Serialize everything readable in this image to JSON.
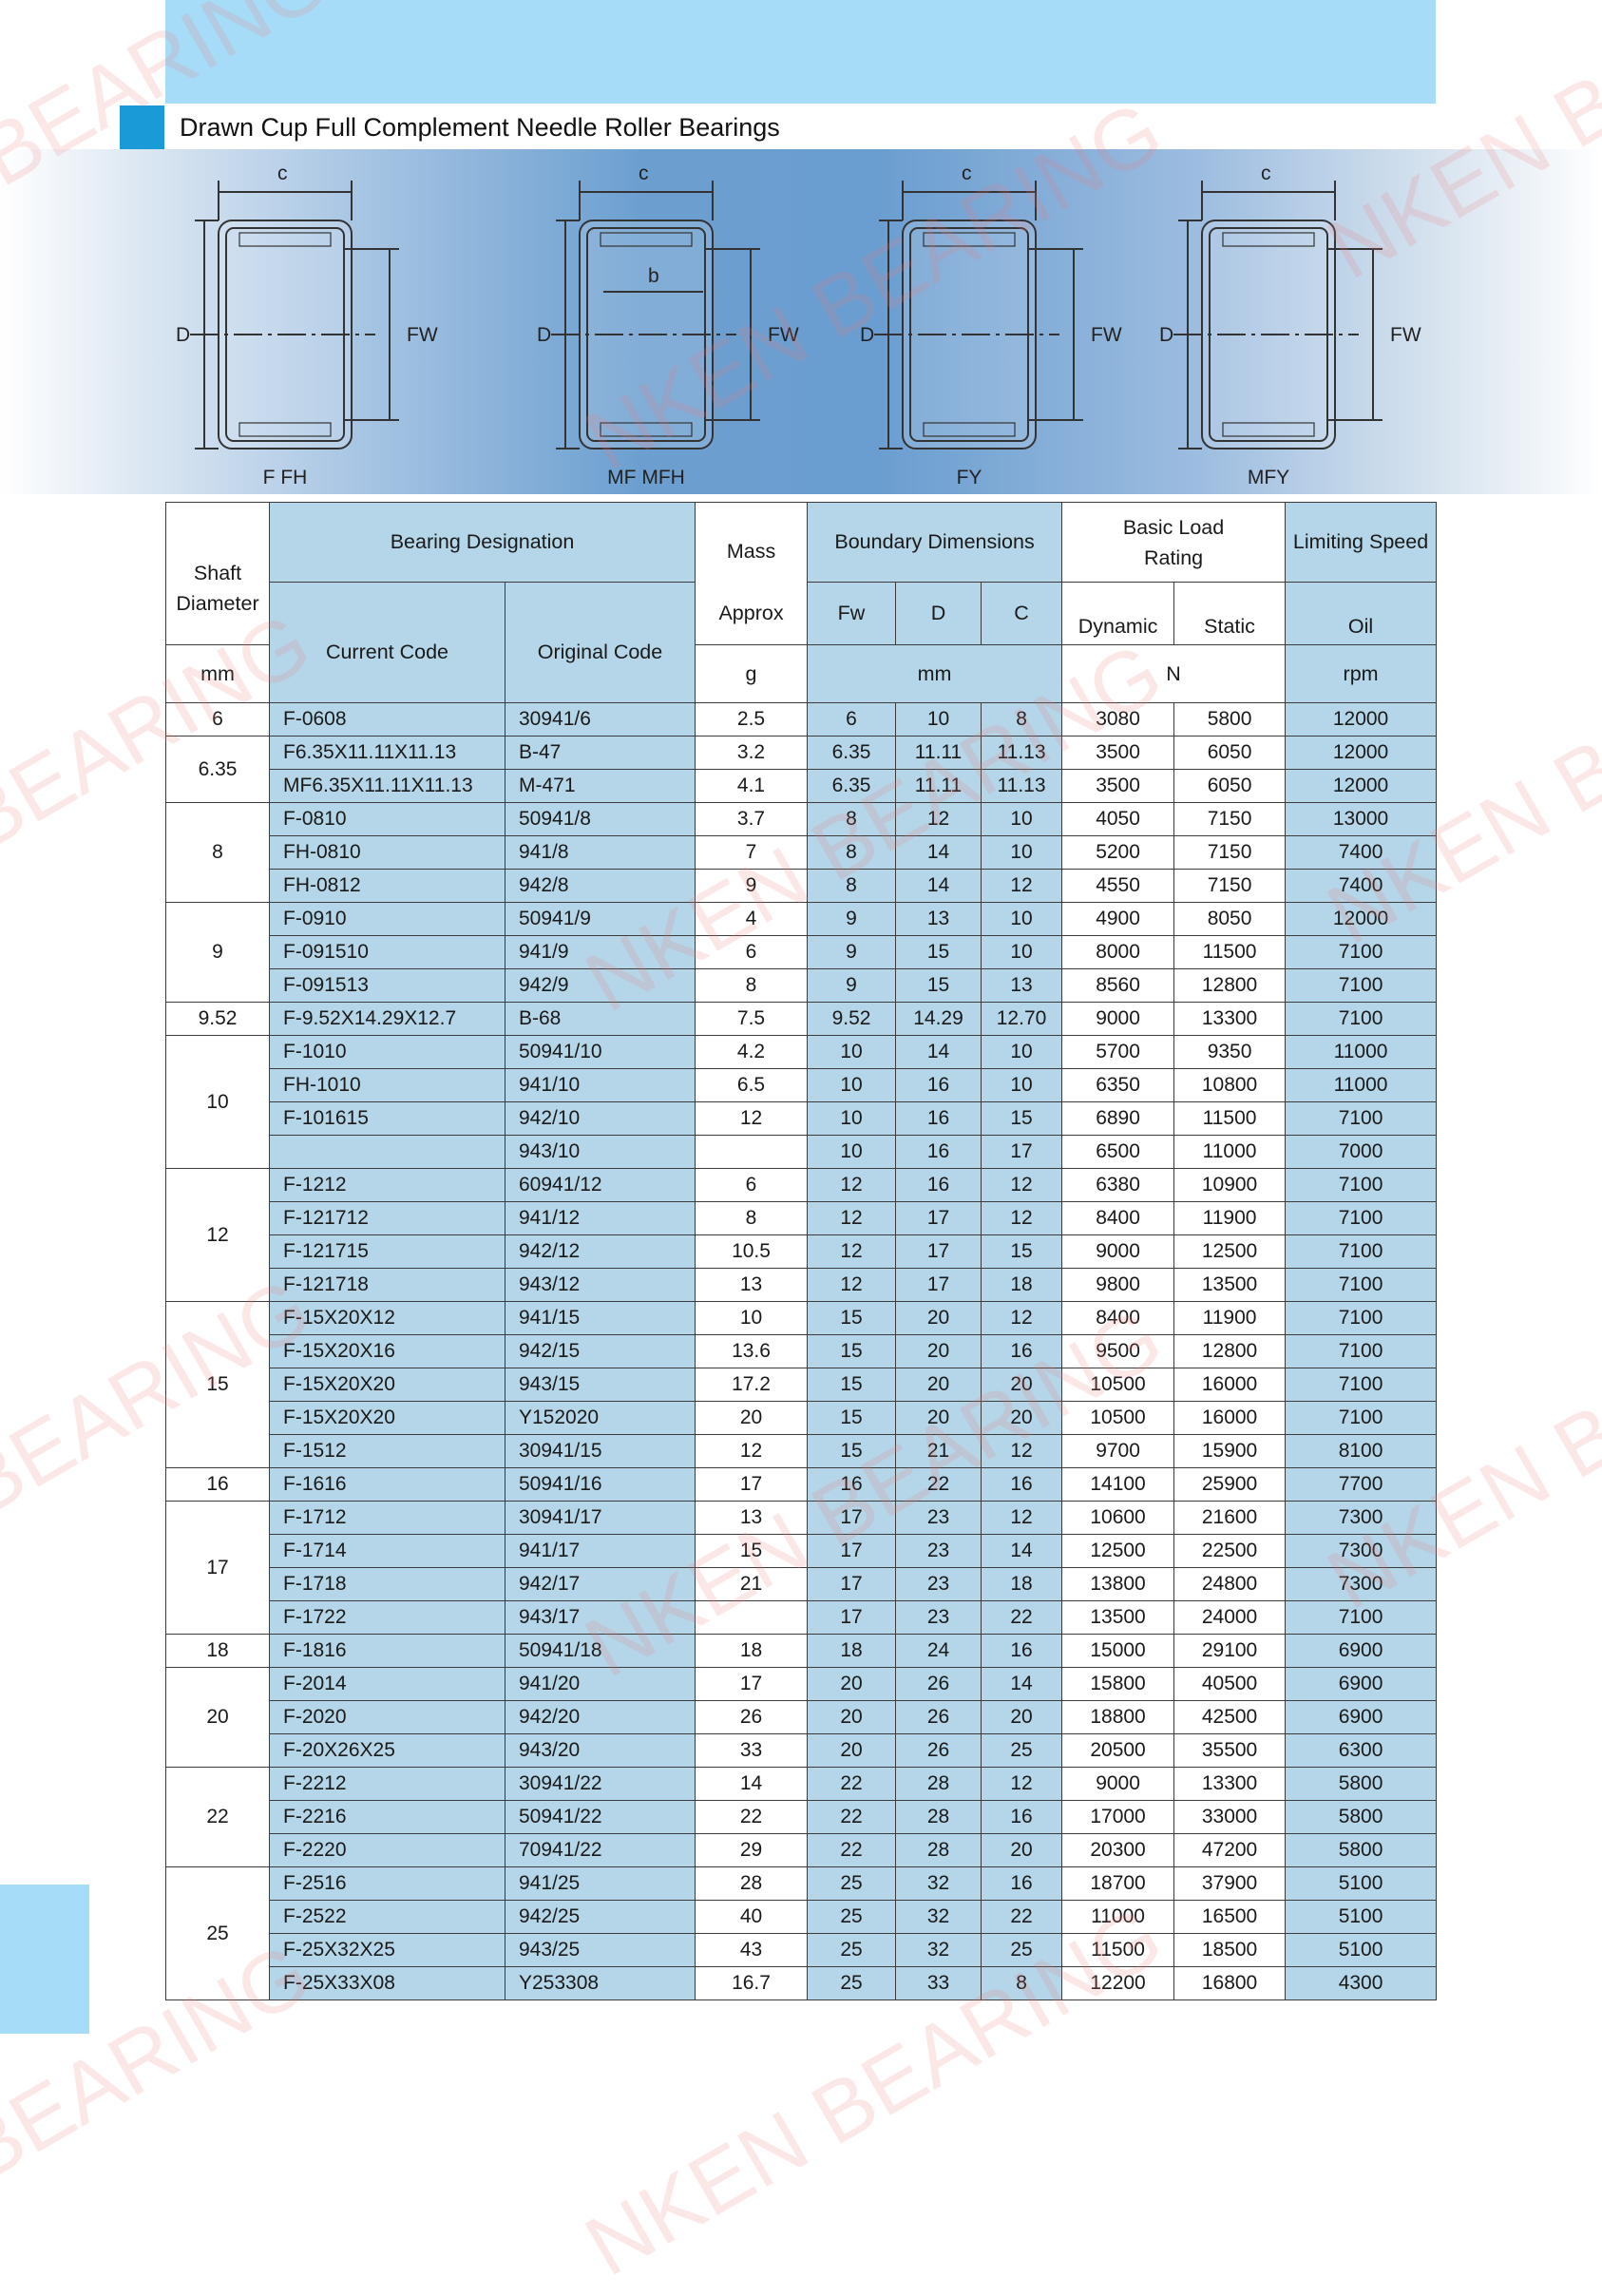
{
  "title": "Drawn Cup Full Complement Needle Roller Bearings",
  "colors": {
    "accent": "#1a9ad6",
    "band": "#a6dcf7",
    "cell_blue": "#b4d6e8"
  },
  "watermark": "NKEN BEARING",
  "diagrams": [
    {
      "caption": "F FH",
      "c": "c",
      "d": "D",
      "fw": "FW"
    },
    {
      "caption": "MF MFH",
      "c": "c",
      "b": "b",
      "d": "D",
      "fw": "FW"
    },
    {
      "caption": "FY",
      "c": "c",
      "d": "D",
      "fw": "FW"
    },
    {
      "caption": "MFY",
      "c": "c",
      "d": "D",
      "fw": "FW"
    }
  ],
  "headers": {
    "shaft": "Shaft Diameter",
    "shaft_unit": "mm",
    "designation": "Bearing Designation",
    "current": "Current Code",
    "original": "Original Code",
    "mass": "Mass",
    "mass_sub": "Approx",
    "mass_unit": "g",
    "boundary": "Boundary Dimensions",
    "fw": "Fw",
    "d": "D",
    "c": "C",
    "boundary_unit": "mm",
    "load": "Basic Load Rating",
    "dynamic": "Dynamic",
    "static": "Static",
    "load_unit": "N",
    "speed": "Limiting Speed",
    "oil": "Oil",
    "speed_unit": "rpm"
  },
  "groups": [
    {
      "shaft": "6",
      "rows": [
        [
          "F-0608",
          "30941/6",
          "2.5",
          "6",
          "10",
          "8",
          "3080",
          "5800",
          "12000"
        ]
      ]
    },
    {
      "shaft": "6.35",
      "rows": [
        [
          "F6.35X11.11X11.13",
          "B-47",
          "3.2",
          "6.35",
          "11.11",
          "11.13",
          "3500",
          "6050",
          "12000"
        ],
        [
          "MF6.35X11.11X11.13",
          "M-471",
          "4.1",
          "6.35",
          "11.11",
          "11.13",
          "3500",
          "6050",
          "12000"
        ]
      ]
    },
    {
      "shaft": "8",
      "rows": [
        [
          "F-0810",
          "50941/8",
          "3.7",
          "8",
          "12",
          "10",
          "4050",
          "7150",
          "13000"
        ],
        [
          "FH-0810",
          "941/8",
          "7",
          "8",
          "14",
          "10",
          "5200",
          "7150",
          "7400"
        ],
        [
          "FH-0812",
          "942/8",
          "9",
          "8",
          "14",
          "12",
          "4550",
          "7150",
          "7400"
        ]
      ]
    },
    {
      "shaft": "9",
      "rows": [
        [
          "F-0910",
          "50941/9",
          "4",
          "9",
          "13",
          "10",
          "4900",
          "8050",
          "12000"
        ],
        [
          "F-091510",
          "941/9",
          "6",
          "9",
          "15",
          "10",
          "8000",
          "11500",
          "7100"
        ],
        [
          "F-091513",
          "942/9",
          "8",
          "9",
          "15",
          "13",
          "8560",
          "12800",
          "7100"
        ]
      ]
    },
    {
      "shaft": "9.52",
      "rows": [
        [
          "F-9.52X14.29X12.7",
          "B-68",
          "7.5",
          "9.52",
          "14.29",
          "12.70",
          "9000",
          "13300",
          "7100"
        ]
      ]
    },
    {
      "shaft": "10",
      "rows": [
        [
          "F-1010",
          "50941/10",
          "4.2",
          "10",
          "14",
          "10",
          "5700",
          "9350",
          "11000"
        ],
        [
          "FH-1010",
          "941/10",
          "6.5",
          "10",
          "16",
          "10",
          "6350",
          "10800",
          "11000"
        ],
        [
          "F-101615",
          "942/10",
          "12",
          "10",
          "16",
          "15",
          "6890",
          "11500",
          "7100"
        ],
        [
          "",
          "943/10",
          "",
          "10",
          "16",
          "17",
          "6500",
          "11000",
          "7000"
        ]
      ]
    },
    {
      "shaft": "12",
      "rows": [
        [
          "F-1212",
          "60941/12",
          "6",
          "12",
          "16",
          "12",
          "6380",
          "10900",
          "7100"
        ],
        [
          "F-121712",
          "941/12",
          "8",
          "12",
          "17",
          "12",
          "8400",
          "11900",
          "7100"
        ],
        [
          "F-121715",
          "942/12",
          "10.5",
          "12",
          "17",
          "15",
          "9000",
          "12500",
          "7100"
        ],
        [
          "F-121718",
          "943/12",
          "13",
          "12",
          "17",
          "18",
          "9800",
          "13500",
          "7100"
        ]
      ]
    },
    {
      "shaft": "15",
      "rows": [
        [
          "F-15X20X12",
          "941/15",
          "10",
          "15",
          "20",
          "12",
          "8400",
          "11900",
          "7100"
        ],
        [
          "F-15X20X16",
          "942/15",
          "13.6",
          "15",
          "20",
          "16",
          "9500",
          "12800",
          "7100"
        ],
        [
          "F-15X20X20",
          "943/15",
          "17.2",
          "15",
          "20",
          "20",
          "10500",
          "16000",
          "7100"
        ],
        [
          "F-15X20X20",
          "Y152020",
          "20",
          "15",
          "20",
          "20",
          "10500",
          "16000",
          "7100"
        ],
        [
          "F-1512",
          "30941/15",
          "12",
          "15",
          "21",
          "12",
          "9700",
          "15900",
          "8100"
        ]
      ]
    },
    {
      "shaft": "16",
      "rows": [
        [
          "F-1616",
          "50941/16",
          "17",
          "16",
          "22",
          "16",
          "14100",
          "25900",
          "7700"
        ]
      ]
    },
    {
      "shaft": "17",
      "rows": [
        [
          "F-1712",
          "30941/17",
          "13",
          "17",
          "23",
          "12",
          "10600",
          "21600",
          "7300"
        ],
        [
          "F-1714",
          "941/17",
          "15",
          "17",
          "23",
          "14",
          "12500",
          "22500",
          "7300"
        ],
        [
          "F-1718",
          "942/17",
          "21",
          "17",
          "23",
          "18",
          "13800",
          "24800",
          "7300"
        ],
        [
          "F-1722",
          "943/17",
          "",
          "17",
          "23",
          "22",
          "13500",
          "24000",
          "7100"
        ]
      ]
    },
    {
      "shaft": "18",
      "rows": [
        [
          "F-1816",
          "50941/18",
          "18",
          "18",
          "24",
          "16",
          "15000",
          "29100",
          "6900"
        ]
      ]
    },
    {
      "shaft": "20",
      "rows": [
        [
          "F-2014",
          "941/20",
          "17",
          "20",
          "26",
          "14",
          "15800",
          "40500",
          "6900"
        ],
        [
          "F-2020",
          "942/20",
          "26",
          "20",
          "26",
          "20",
          "18800",
          "42500",
          "6900"
        ],
        [
          "F-20X26X25",
          "943/20",
          "33",
          "20",
          "26",
          "25",
          "20500",
          "35500",
          "6300"
        ]
      ]
    },
    {
      "shaft": "22",
      "rows": [
        [
          "F-2212",
          "30941/22",
          "14",
          "22",
          "28",
          "12",
          "9000",
          "13300",
          "5800"
        ],
        [
          "F-2216",
          "50941/22",
          "22",
          "22",
          "28",
          "16",
          "17000",
          "33000",
          "5800"
        ],
        [
          "F-2220",
          "70941/22",
          "29",
          "22",
          "28",
          "20",
          "20300",
          "47200",
          "5800"
        ]
      ]
    },
    {
      "shaft": "25",
      "rows": [
        [
          "F-2516",
          "941/25",
          "28",
          "25",
          "32",
          "16",
          "18700",
          "37900",
          "5100"
        ],
        [
          "F-2522",
          "942/25",
          "40",
          "25",
          "32",
          "22",
          "11000",
          "16500",
          "5100"
        ],
        [
          "F-25X32X25",
          "943/25",
          "43",
          "25",
          "32",
          "25",
          "11500",
          "18500",
          "5100"
        ],
        [
          "F-25X33X08",
          "Y253308",
          "16.7",
          "25",
          "33",
          "8",
          "12200",
          "16800",
          "4300"
        ]
      ]
    }
  ]
}
